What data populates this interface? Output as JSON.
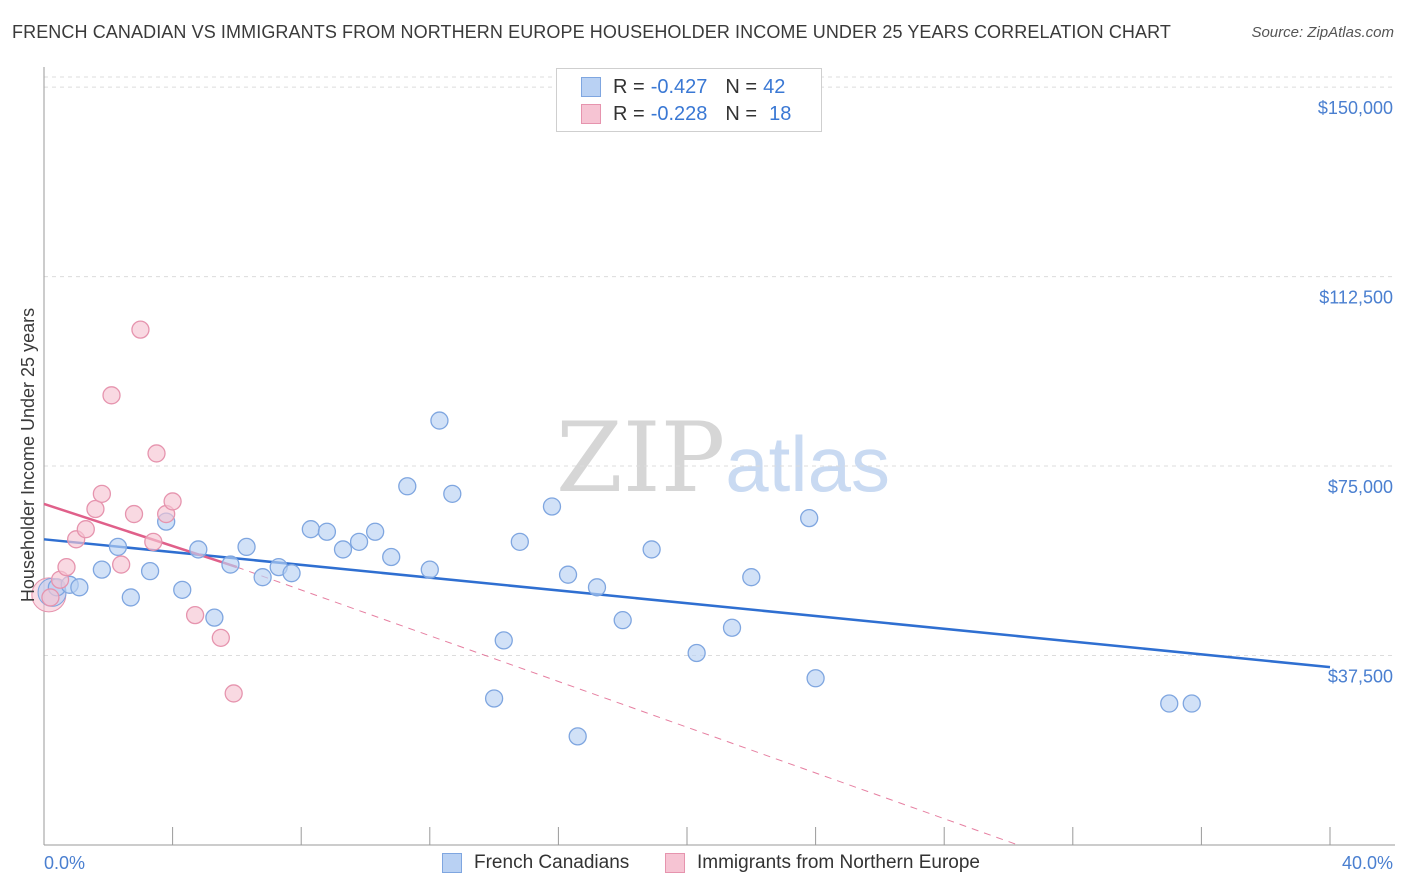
{
  "title": "FRENCH CANADIAN VS IMMIGRANTS FROM NORTHERN EUROPE HOUSEHOLDER INCOME UNDER 25 YEARS CORRELATION CHART",
  "source": "Source: ZipAtlas.com",
  "watermark": {
    "zip": "ZIP",
    "atlas": "atlas"
  },
  "legend": {
    "rows": [
      {
        "r_label": "R =",
        "r_value": "-0.427",
        "n_label": "N =",
        "n_value": "42"
      },
      {
        "r_label": "R =",
        "r_value": "-0.228",
        "n_label": "N =",
        "n_value": "18"
      }
    ]
  },
  "colors": {
    "blue_fill": "#b9d1f3",
    "blue_stroke": "#7fa6e0",
    "blue_line": "#2f6fd1",
    "pink_fill": "#f6c4d3",
    "pink_stroke": "#e694ae",
    "pink_line": "#e0608a",
    "axis_text": "#4a7fd0",
    "grid": "#dcdcdc"
  },
  "chart_data": {
    "type": "scatter",
    "title": "FRENCH CANADIAN VS IMMIGRANTS FROM NORTHERN EUROPE HOUSEHOLDER INCOME UNDER 25 YEARS CORRELATION CHART",
    "xlabel": "",
    "ylabel": "Householder Income Under 25 years",
    "xlim": [
      0,
      40
    ],
    "ylim": [
      0,
      152000
    ],
    "x_tick_labels": [
      "0.0%",
      "40.0%"
    ],
    "y_ticks": [
      37500,
      75000,
      112500,
      150000
    ],
    "y_tick_labels": [
      "$37,500",
      "$75,000",
      "$112,500",
      "$150,000"
    ],
    "grid": true,
    "legend_position": "bottom",
    "series": [
      {
        "name": "French Canadians",
        "color": "#b9d1f3",
        "points": [
          [
            0.4,
            51000
          ],
          [
            0.8,
            51500
          ],
          [
            1.1,
            51000
          ],
          [
            1.8,
            54500
          ],
          [
            2.3,
            59000
          ],
          [
            2.7,
            49000
          ],
          [
            3.3,
            54200
          ],
          [
            3.8,
            64000
          ],
          [
            4.3,
            50500
          ],
          [
            4.8,
            58500
          ],
          [
            5.3,
            45000
          ],
          [
            5.8,
            55500
          ],
          [
            6.3,
            59000
          ],
          [
            6.8,
            53000
          ],
          [
            7.3,
            55000
          ],
          [
            7.7,
            53800
          ],
          [
            8.3,
            62500
          ],
          [
            8.8,
            62000
          ],
          [
            9.3,
            58500
          ],
          [
            9.8,
            60000
          ],
          [
            10.3,
            62000
          ],
          [
            10.8,
            57000
          ],
          [
            11.3,
            71000
          ],
          [
            12.0,
            54500
          ],
          [
            12.3,
            84000
          ],
          [
            12.7,
            69500
          ],
          [
            14.0,
            29000
          ],
          [
            14.3,
            40500
          ],
          [
            14.8,
            60000
          ],
          [
            15.8,
            67000
          ],
          [
            16.3,
            53500
          ],
          [
            16.6,
            21500
          ],
          [
            17.2,
            51000
          ],
          [
            18.0,
            44500
          ],
          [
            18.9,
            58500
          ],
          [
            20.3,
            38000
          ],
          [
            21.4,
            43000
          ],
          [
            22.0,
            53000
          ],
          [
            23.8,
            64700
          ],
          [
            24.0,
            33000
          ],
          [
            35.0,
            28000
          ],
          [
            35.7,
            28000
          ]
        ]
      },
      {
        "name": "Immigrants from Northern Europe",
        "color": "#f6c4d3",
        "points": [
          [
            0.2,
            49000
          ],
          [
            0.5,
            52500
          ],
          [
            0.7,
            55000
          ],
          [
            1.0,
            60500
          ],
          [
            1.3,
            62500
          ],
          [
            1.6,
            66500
          ],
          [
            1.8,
            69500
          ],
          [
            2.4,
            55500
          ],
          [
            2.8,
            65500
          ],
          [
            3.0,
            102000
          ],
          [
            2.1,
            89000
          ],
          [
            3.4,
            60000
          ],
          [
            3.5,
            77500
          ],
          [
            3.8,
            65500
          ],
          [
            4.0,
            68000
          ],
          [
            4.7,
            45500
          ],
          [
            5.5,
            41000
          ],
          [
            5.9,
            30000
          ]
        ]
      }
    ],
    "trendlines": [
      {
        "series": "French Canadians",
        "x": [
          0,
          40
        ],
        "y": [
          60500,
          35200
        ]
      },
      {
        "series": "Immigrants from Northern Europe",
        "x": [
          0,
          6
        ],
        "y": [
          67500,
          55000
        ]
      },
      {
        "series": "Immigrants from Northern Europe (extrapolated)",
        "x": [
          6,
          30.3
        ],
        "y": [
          55000,
          0
        ]
      }
    ]
  },
  "bottom_legend": {
    "items": [
      {
        "label": "French Canadians"
      },
      {
        "label": "Immigrants from Northern Europe"
      }
    ]
  }
}
